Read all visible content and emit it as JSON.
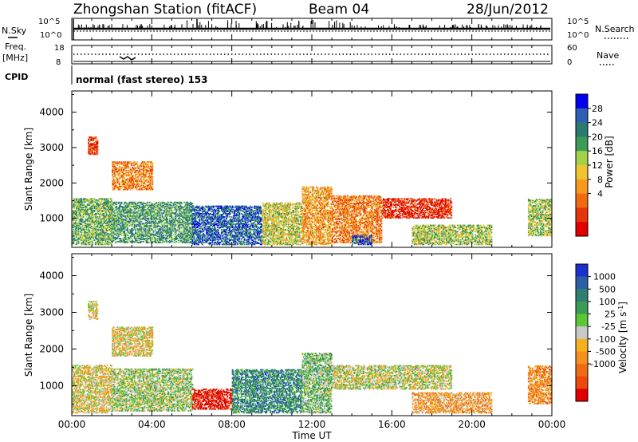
{
  "header": {
    "station": "Zhongshan Station (fitACF)",
    "beam": "Beam 04",
    "date": "28/Jun/2012"
  },
  "summary": {
    "nsky_label": "N.Sky",
    "nsky_ticks": [
      "10^5",
      "10^0"
    ],
    "nsearch_label": "N.Search",
    "nsearch_ticks": [
      "10^5",
      "10^0"
    ],
    "freq_label": "Freq.",
    "freq_unit": "[MHz]",
    "freq_ticks": [
      "18",
      "8"
    ],
    "nave_label": "Nave",
    "nave_ticks": [
      "60",
      "0"
    ],
    "cpid_label": "CPID",
    "cpid_text": "normal (fast stereo) 153"
  },
  "axes": {
    "xlabel": "Time UT",
    "xticks": [
      "00:00",
      "04:00",
      "08:00",
      "12:00",
      "16:00",
      "20:00",
      "00:00"
    ],
    "ylabel": "Slant Range [km]",
    "yticks": [
      "4000",
      "3000",
      "2000",
      "1000"
    ]
  },
  "chart_data": [
    {
      "type": "heatmap",
      "name": "Power",
      "xlabel": "Time UT",
      "ylabel": "Slant Range [km]",
      "xlim_hours": [
        0,
        24
      ],
      "ylim": [
        180,
        4600
      ],
      "colorbar_label": "Power [dB]",
      "colorbar_ticks": [
        "28",
        "24",
        "20",
        "16",
        "12",
        "8",
        "4"
      ],
      "colorbar_colors": [
        "#0000ee",
        "#2d5fb4",
        "#2a7b6e",
        "#3a9c57",
        "#a3d14a",
        "#f0c430",
        "#f59a1e",
        "#f06a12",
        "#e4360a",
        "#e00000"
      ],
      "scatter_regions": [
        {
          "t": [
            0.0,
            2.0
          ],
          "r": [
            250,
            1550
          ],
          "level": 0.62
        },
        {
          "t": [
            2.0,
            6.0
          ],
          "r": [
            300,
            1450
          ],
          "level": 0.68
        },
        {
          "t": [
            6.0,
            9.5
          ],
          "r": [
            250,
            1350
          ],
          "level": 0.82
        },
        {
          "t": [
            9.5,
            11.5
          ],
          "r": [
            250,
            1450
          ],
          "level": 0.5
        },
        {
          "t": [
            11.5,
            13.0
          ],
          "r": [
            250,
            1900
          ],
          "level": 0.35
        },
        {
          "t": [
            13.0,
            15.5
          ],
          "r": [
            300,
            1650
          ],
          "level": 0.28
        },
        {
          "t": [
            14.0,
            15.0
          ],
          "r": [
            250,
            500
          ],
          "level": 0.85
        },
        {
          "t": [
            15.5,
            19.0
          ],
          "r": [
            1000,
            1550
          ],
          "level": 0.12
        },
        {
          "t": [
            17.0,
            21.0
          ],
          "r": [
            250,
            800
          ],
          "level": 0.55
        },
        {
          "t": [
            22.8,
            24.0
          ],
          "r": [
            500,
            1550
          ],
          "level": 0.55
        },
        {
          "t": [
            2.0,
            4.0
          ],
          "r": [
            1800,
            2600
          ],
          "level": 0.3
        },
        {
          "t": [
            0.8,
            1.3
          ],
          "r": [
            2800,
            3300
          ],
          "level": 0.15
        }
      ]
    },
    {
      "type": "heatmap",
      "name": "Velocity",
      "xlabel": "Time UT",
      "ylabel": "Slant Range [km]",
      "xlim_hours": [
        0,
        24
      ],
      "ylim": [
        180,
        4600
      ],
      "colorbar_label": "Velocity [m s^-1]",
      "colorbar_ticks": [
        "1000",
        "500",
        "100",
        "25",
        "-25",
        "-100",
        "-500",
        "-1000"
      ],
      "colorbar_colors": [
        "#1c2fcf",
        "#2a5fa6",
        "#2f7f70",
        "#3a9c57",
        "#5cc736",
        "#c8c8c8",
        "#f5b21e",
        "#f5901e",
        "#f06c12",
        "#ec4a0a",
        "#e00000"
      ],
      "scatter_regions": [
        {
          "t": [
            0.0,
            2.0
          ],
          "r": [
            250,
            1550
          ],
          "level": 0.45
        },
        {
          "t": [
            2.0,
            6.0
          ],
          "r": [
            300,
            1450
          ],
          "level": 0.55
        },
        {
          "t": [
            6.0,
            8.0
          ],
          "r": [
            350,
            900
          ],
          "level": 0.02
        },
        {
          "t": [
            8.0,
            11.5
          ],
          "r": [
            250,
            1450
          ],
          "level": 0.75
        },
        {
          "t": [
            11.5,
            13.0
          ],
          "r": [
            250,
            1900
          ],
          "level": 0.6
        },
        {
          "t": [
            13.0,
            19.0
          ],
          "r": [
            900,
            1550
          ],
          "level": 0.5
        },
        {
          "t": [
            17.0,
            21.0
          ],
          "r": [
            250,
            800
          ],
          "level": 0.35
        },
        {
          "t": [
            22.8,
            24.0
          ],
          "r": [
            500,
            1550
          ],
          "level": 0.3
        },
        {
          "t": [
            2.0,
            4.0
          ],
          "r": [
            1800,
            2600
          ],
          "level": 0.45
        },
        {
          "t": [
            0.8,
            1.3
          ],
          "r": [
            2800,
            3300
          ],
          "level": 0.45
        }
      ]
    }
  ]
}
